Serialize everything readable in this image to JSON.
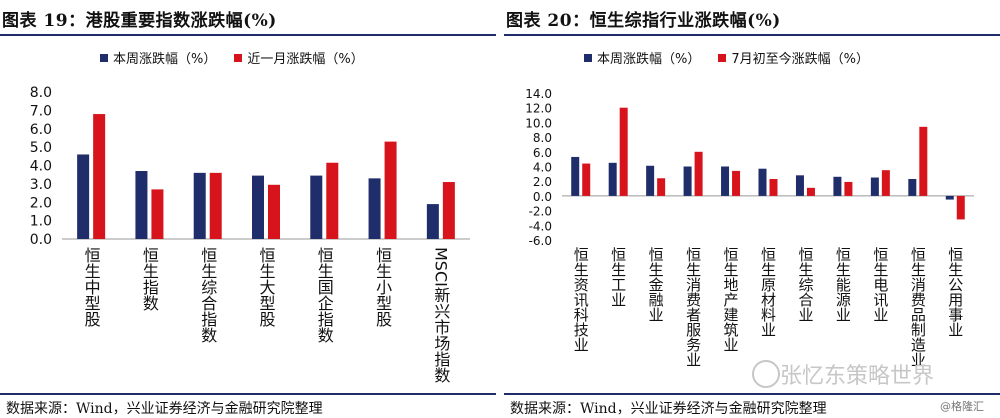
{
  "left": {
    "title": "图表 19：港股重要指数涨跌幅(%)",
    "source": "数据来源：Wind，兴业证券经济与金融研究院整理",
    "chart_data": {
      "type": "bar",
      "categories": [
        "恒生中型股",
        "恒生指数",
        "恒生综合指数",
        "恒生大型股",
        "恒生国企指数",
        "恒生小型股",
        "MSCI新兴市场指数"
      ],
      "series": [
        {
          "name": "本周涨跌幅（%）",
          "color": "#1f2d6b",
          "values": [
            4.6,
            3.7,
            3.6,
            3.45,
            3.45,
            3.3,
            1.9
          ]
        },
        {
          "name": "近一月涨跌幅（%）",
          "color": "#d7141c",
          "values": [
            6.8,
            2.7,
            3.6,
            2.95,
            4.15,
            5.3,
            3.1
          ]
        }
      ],
      "yticks": [
        "0.0",
        "1.0",
        "2.0",
        "3.0",
        "4.0",
        "5.0",
        "6.0",
        "7.0",
        "8.0"
      ],
      "ylim": [
        0,
        8
      ]
    }
  },
  "right": {
    "title": "图表 20：恒生综指行业涨跌幅(%)",
    "source": "数据来源：Wind，兴业证券经济与金融研究院整理",
    "chart_data": {
      "type": "bar",
      "categories": [
        "恒生资讯科技业",
        "恒生工业",
        "恒生金融业",
        "恒生消费者服务业",
        "恒生地产建筑业",
        "恒生原材料业",
        "恒生综合业",
        "恒生能源业",
        "恒生电讯业",
        "恒生消费品制造业",
        "恒生公用事业"
      ],
      "series": [
        {
          "name": "本周涨跌幅（%）",
          "color": "#1f2d6b",
          "values": [
            5.3,
            4.5,
            4.1,
            4.0,
            4.0,
            3.7,
            2.8,
            2.6,
            2.5,
            2.3,
            -0.5
          ]
        },
        {
          "name": "7月初至今涨跌幅（%）",
          "color": "#d7141c",
          "values": [
            4.4,
            12.0,
            2.4,
            6.0,
            3.4,
            2.3,
            1.1,
            1.9,
            3.5,
            9.4,
            -3.2
          ]
        }
      ],
      "yticks": [
        "-6.0",
        "-4.0",
        "-2.0",
        "0.0",
        "2.0",
        "4.0",
        "6.0",
        "8.0",
        "10.0",
        "12.0",
        "14.0"
      ],
      "ylim": [
        -6,
        14
      ]
    }
  },
  "watermark": "张忆东策略世界",
  "credit": "@格隆汇"
}
